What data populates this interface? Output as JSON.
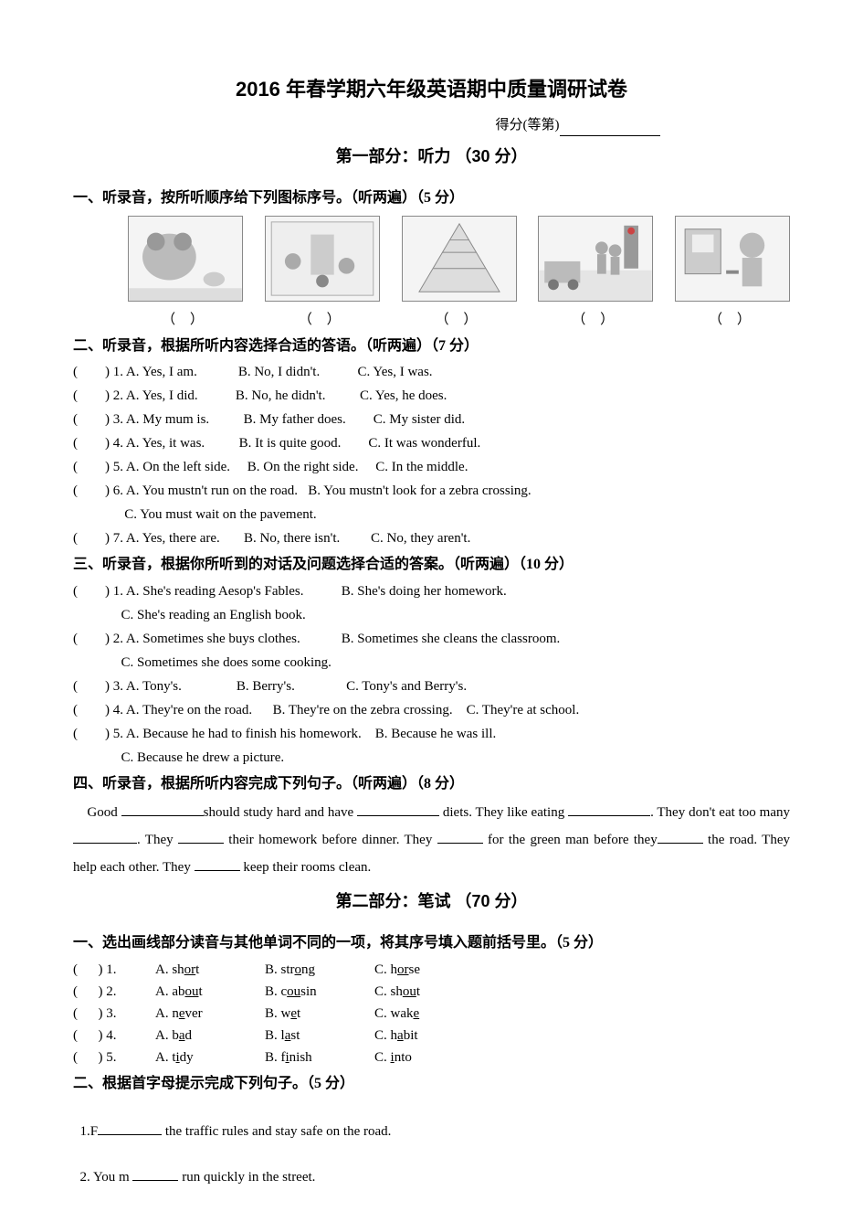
{
  "title": "2016 年春学期六年级英语期中质量调研试卷",
  "score": {
    "label": "得分(等第)"
  },
  "part1": {
    "header": "第一部分：听力 （30 分）"
  },
  "sec1": {
    "header": "一、听录音，按所听顺序给下列图标序号。（听两遍）（5 分）",
    "brackets": [
      "（        ）",
      "（        ）",
      "（        ）",
      "（        ）",
      "（        ）"
    ]
  },
  "sec2": {
    "header": "二、听录音，根据所听内容选择合适的答语。（听两遍）（7 分）",
    "items": [
      "(        ) 1. A. Yes, I am.            B. No, I didn't.           C. Yes, I was.",
      "(        ) 2. A. Yes, I did.           B. No, he didn't.          C. Yes, he does.",
      "(        ) 3. A. My mum is.          B. My father does.        C. My sister did.",
      "(        ) 4. A. Yes, it was.          B. It is quite good.        C. It was wonderful.",
      "(        ) 5. A. On the left side.     B. On the right side.     C. In the middle.",
      "(        ) 6. A. You mustn't run on the road.   B. You mustn't look for a zebra crossing.",
      "               C. You must wait on the pavement.",
      "(        ) 7. A. Yes, there are.       B. No, there isn't.         C. No, they aren't."
    ]
  },
  "sec3": {
    "header": "三、听录音，根据你所听到的对话及问题选择合适的答案。（听两遍）（10 分）",
    "items": [
      "(        ) 1. A. She's reading Aesop's Fables.           B. She's doing her homework.",
      "              C. She's reading an English book.",
      "(        ) 2. A. Sometimes she buys clothes.            B. Sometimes she cleans the classroom.",
      "              C. Sometimes she does some cooking.",
      "(        ) 3. A. Tony's.                B. Berry's.               C. Tony's and Berry's.",
      "(        ) 4. A. They're on the road.      B. They're on the zebra crossing.    C. They're at school.",
      "(        ) 5. A. Because he had to finish his homework.    B. Because he was ill.",
      "              C. Because he drew a picture."
    ]
  },
  "sec4": {
    "header": "四、听录音，根据所听内容完成下列句子。（听两遍）（8 分）",
    "p": {
      "t1": "Good ",
      "t2": "should study hard and have ",
      "t3": " diets. They like eating ",
      "t4": ". They don't eat too many ",
      "t5": ". They ",
      "t6": " their homework before dinner. They ",
      "t7": " for the green man before they",
      "t8": " the road. They help each other. They ",
      "t9": " keep their rooms clean."
    }
  },
  "part2": {
    "header": "第二部分：笔试 （70 分）"
  },
  "sec5": {
    "header": "一、选出画线部分读音与其他单词不同的一项，将其序号填入题前括号里。（5 分）",
    "rows": [
      {
        "n": "1",
        "a": "sh",
        "au": "or",
        "a2": "t",
        "b": "str",
        "bu": "o",
        "b2": "ng",
        "c": "h",
        "cu": "or",
        "c2": "se"
      },
      {
        "n": "2",
        "a": "ab",
        "au": "ou",
        "a2": "t",
        "b": "c",
        "bu": "ou",
        "b2": "sin",
        "c": "sh",
        "cu": "ou",
        "c2": "t"
      },
      {
        "n": "3",
        "a": "n",
        "au": "e",
        "a2": "ver",
        "b": "w",
        "bu": "e",
        "b2": "t",
        "c": "wak",
        "cu": "e",
        "c2": ""
      },
      {
        "n": "4",
        "a": "b",
        "au": "a",
        "a2": "d",
        "b": "l",
        "bu": "a",
        "b2": "st",
        "c": "h",
        "cu": "a",
        "c2": "bit"
      },
      {
        "n": "5",
        "a": "t",
        "au": "i",
        "a2": "dy",
        "b": "f",
        "bu": "i",
        "b2": "nish",
        "c": "",
        "cu": "i",
        "c2": "nto"
      }
    ]
  },
  "sec6": {
    "header": "二、根据首字母提示完成下列句子。（5 分）",
    "q1a": "1.F",
    "q1b": " the traffic rules and stay safe on the road.",
    "q2a": "2. You m ",
    "q2b": " run quickly in the street."
  }
}
